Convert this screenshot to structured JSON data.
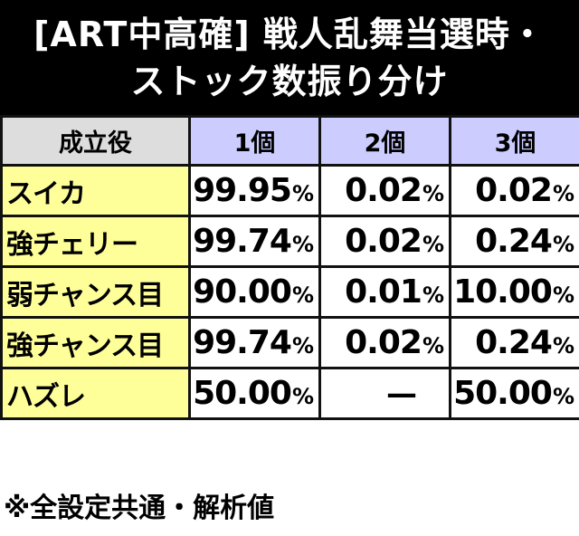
{
  "title": {
    "line1": "[ART中高確] 戦人乱舞当選時・",
    "line2": "ストック数振り分け"
  },
  "table": {
    "headers": [
      "成立役",
      "1個",
      "2個",
      "3個"
    ],
    "rows": [
      {
        "role": "スイカ",
        "v1": "99.95",
        "v2": "0.02",
        "v3": "0.02"
      },
      {
        "role": "強チェリー",
        "v1": "99.74",
        "v2": "0.02",
        "v3": "0.24"
      },
      {
        "role": "弱チャンス目",
        "v1": "90.00",
        "v2": "0.01",
        "v3": "10.00"
      },
      {
        "role": "強チャンス目",
        "v1": "99.74",
        "v2": "0.02",
        "v3": "0.24"
      },
      {
        "role": "ハズレ",
        "v1": "50.00",
        "v2": "—",
        "v3": "50.00"
      }
    ],
    "percent_sign": "%"
  },
  "footer": "※全設定共通・解析値",
  "colors": {
    "header_bg": "#000000",
    "column_header_bg": "#ccccff",
    "first_header_bg": "#dddddd",
    "role_cell_bg": "#ffff99"
  }
}
